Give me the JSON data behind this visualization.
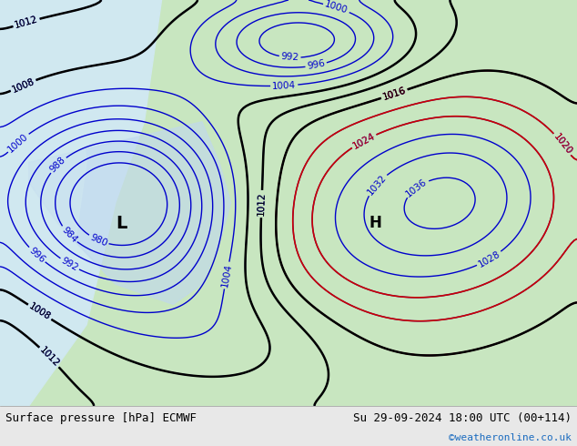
{
  "title_left": "Surface pressure [hPa] ECMWF",
  "title_right": "Su 29-09-2024 18:00 UTC (00+114)",
  "copyright": "©weatheronline.co.uk",
  "bg_map_color": "#c8e6c0",
  "bg_sea_color": "#d0e8f0",
  "land_color": "#c8e6c0",
  "footer_bg": "#e8e8e8",
  "footer_text_color": "#000000",
  "copyright_color": "#1a6bbf",
  "blue_contour_color": "#0000cc",
  "red_contour_color": "#cc0000",
  "black_contour_color": "#000000",
  "label_fontsize": 7.5,
  "footer_fontsize": 9
}
